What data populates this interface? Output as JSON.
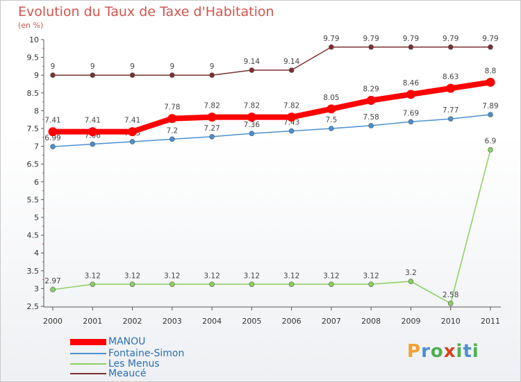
{
  "header": {
    "title": "Evolution du Taux de Taxe d'Habitation",
    "unit": "(en %)"
  },
  "brand": {
    "letters": [
      "P",
      "r",
      "o",
      "x",
      "i",
      "t",
      "i"
    ],
    "colors": [
      "#f0a030",
      "#4a90d0",
      "#50b050",
      "#d84020",
      "#50b050",
      "#4a90d0",
      "#50b050"
    ]
  },
  "chart_data": {
    "type": "line",
    "title": "Evolution du Taux de Taxe d'Habitation",
    "subtitle": "(en %)",
    "xlabel": "",
    "ylabel": "",
    "x": [
      "2000",
      "2001",
      "2002",
      "2003",
      "2004",
      "2005",
      "2006",
      "2007",
      "2008",
      "2009",
      "2010",
      "2011"
    ],
    "ylim": [
      2.5,
      10
    ],
    "yticks": [
      "2.5",
      "3",
      "3.5",
      "4",
      "4.5",
      "5",
      "5.5",
      "6",
      "6.5",
      "7",
      "7.5",
      "8",
      "8.5",
      "9",
      "9.5",
      "10"
    ],
    "grid": false,
    "legend_position": "bottom-left",
    "series": [
      {
        "name": "MANOU",
        "color": "#ff0000",
        "values": [
          7.41,
          7.41,
          7.41,
          7.78,
          7.82,
          7.82,
          7.82,
          8.05,
          8.29,
          8.46,
          8.63,
          8.8
        ],
        "labels": [
          "7.41",
          "7.41",
          "7.41",
          "7.78",
          "7.82",
          "7.82",
          "7.82",
          "8.05",
          "8.29",
          "8.46",
          "8.63",
          "8.8"
        ]
      },
      {
        "name": "Fontaine-Simon",
        "color": "#4a90d0",
        "values": [
          6.99,
          7.06,
          7.13,
          7.2,
          7.27,
          7.36,
          7.43,
          7.5,
          7.58,
          7.69,
          7.77,
          7.89
        ],
        "labels": [
          "6.99",
          "7.06",
          "7.13",
          "7.2",
          "7.27",
          "7.36",
          "7.43",
          "7.5",
          "7.58",
          "7.69",
          "7.77",
          "7.89"
        ]
      },
      {
        "name": "Les Menus",
        "color": "#88d060",
        "values": [
          2.97,
          3.12,
          3.12,
          3.12,
          3.12,
          3.12,
          3.12,
          3.12,
          3.12,
          3.2,
          2.58,
          6.9
        ],
        "labels": [
          "2.97",
          "3.12",
          "3.12",
          "3.12",
          "3.12",
          "3.12",
          "3.12",
          "3.12",
          "3.12",
          "3.2",
          "2.58",
          "6.9"
        ]
      },
      {
        "name": "Meaucé",
        "color": "#7a3030",
        "values": [
          9,
          9,
          9,
          9,
          9,
          9.14,
          9.14,
          9.79,
          9.79,
          9.79,
          9.79,
          9.79
        ],
        "labels": [
          "9",
          "9",
          "9",
          "9",
          "9",
          "9.14",
          "9.14",
          "9.79",
          "9.79",
          "9.79",
          "9.79",
          "9.79"
        ]
      }
    ]
  }
}
